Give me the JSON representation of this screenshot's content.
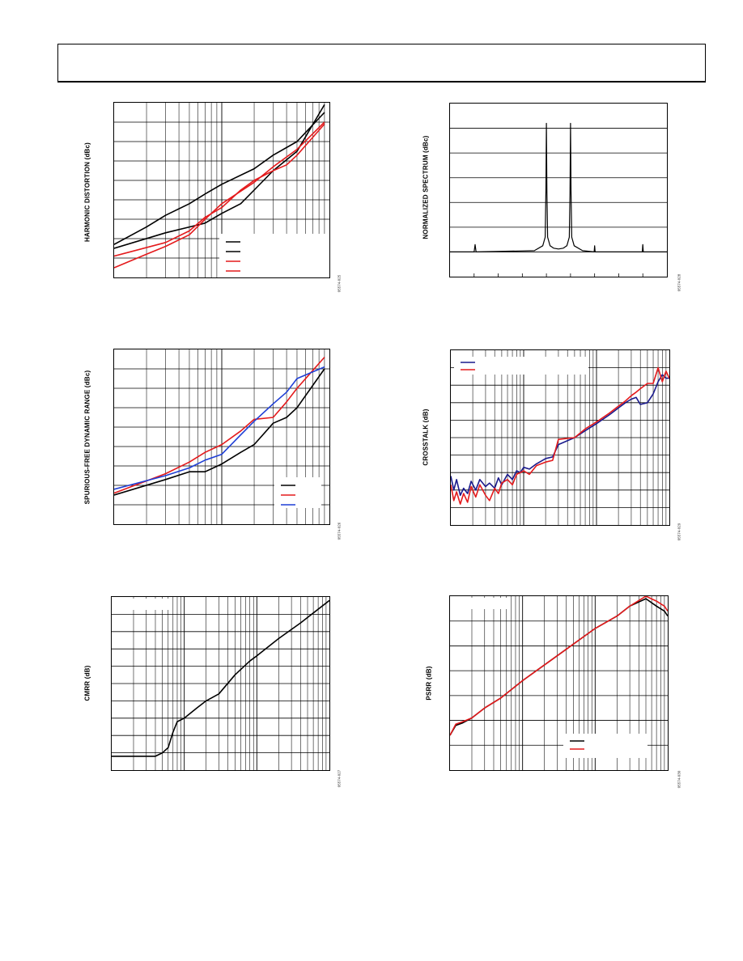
{
  "page": {
    "header": ""
  },
  "charts": [
    {
      "id": "harmonic",
      "figure_id": "05574-025",
      "chart_data": {
        "type": "line",
        "title": "",
        "xlabel": "",
        "ylabel": "HARMONIC DISTORTION (dBc)",
        "xscale": "log",
        "xlim": [
          1,
          100
        ],
        "ylim": [
          0,
          9
        ],
        "grid": true,
        "legend": "bottom-right",
        "series": [
          {
            "color": "#000000",
            "x": [
              1,
              2,
              3,
              5,
              7,
              10,
              20,
              30,
              50,
              90
            ],
            "y": [
              1.7,
              2.6,
              3.2,
              3.8,
              4.3,
              4.8,
              5.6,
              6.3,
              7.0,
              8.5
            ]
          },
          {
            "color": "#000000",
            "x": [
              1,
              3,
              5,
              7,
              10,
              15,
              20,
              30,
              50,
              90
            ],
            "y": [
              1.5,
              2.3,
              2.6,
              2.8,
              3.3,
              3.8,
              4.5,
              5.5,
              6.5,
              8.9
            ]
          },
          {
            "color": "#e41a1c",
            "x": [
              1,
              3,
              5,
              7,
              10,
              15,
              20,
              30,
              40,
              50,
              90
            ],
            "y": [
              1.1,
              1.8,
              2.4,
              3.1,
              3.6,
              4.5,
              5.0,
              5.5,
              5.8,
              6.3,
              7.9
            ]
          },
          {
            "color": "#e41a1c",
            "x": [
              1,
              2,
              3,
              5,
              7,
              10,
              20,
              30,
              50,
              90
            ],
            "y": [
              0.5,
              1.2,
              1.6,
              2.2,
              3.0,
              3.8,
              4.9,
              5.7,
              6.6,
              8.0
            ]
          }
        ]
      }
    },
    {
      "id": "spectrum",
      "figure_id": "05574-028",
      "chart_data": {
        "type": "line",
        "title": "",
        "xlabel": "",
        "ylabel": "NORMALIZED SPECTRUM (dBc)",
        "xlim": [
          0,
          9
        ],
        "ylim": [
          0,
          7
        ],
        "grid": "horizontal",
        "series": [
          {
            "color": "#000000",
            "x": [
              0,
              1.0,
              1.04,
              1.08,
              3.5,
              3.85,
              3.95,
              3.98,
              4.0,
              4.02,
              4.05,
              4.15,
              4.3,
              4.5,
              4.7,
              4.85,
              4.95,
              4.98,
              5.0,
              5.02,
              5.05,
              5.15,
              5.5,
              5.98,
              6.0,
              6.02,
              7.98,
              8.0,
              8.02,
              9.0
            ],
            "y": [
              1.0,
              1.0,
              1.3,
              1.0,
              1.05,
              1.25,
              1.6,
              3.5,
              6.2,
              3.5,
              1.6,
              1.25,
              1.15,
              1.12,
              1.15,
              1.25,
              1.6,
              3.5,
              6.2,
              3.5,
              1.6,
              1.25,
              1.05,
              1.0,
              1.25,
              1.0,
              1.0,
              1.3,
              1.0,
              1.0
            ]
          }
        ]
      }
    },
    {
      "id": "sfdr",
      "figure_id": "05574-026",
      "chart_data": {
        "type": "line",
        "title": "",
        "xlabel": "",
        "ylabel": "SPURIOUS-FREE DYNAMIC RANGE (dBc)",
        "xscale": "log",
        "xlim": [
          1,
          100
        ],
        "ylim": [
          0,
          9
        ],
        "grid": true,
        "legend": "bottom-right",
        "series": [
          {
            "color": "#000000",
            "x": [
              1,
              3,
              5,
              7,
              10,
              15,
              20,
              30,
              40,
              50,
              90
            ],
            "y": [
              1.5,
              2.3,
              2.7,
              2.7,
              3.1,
              3.7,
              4.1,
              5.2,
              5.5,
              6.0,
              8.0
            ]
          },
          {
            "color": "#e41a1c",
            "x": [
              1,
              3,
              5,
              7,
              10,
              15,
              20,
              30,
              40,
              50,
              90
            ],
            "y": [
              1.6,
              2.6,
              3.2,
              3.7,
              4.1,
              4.8,
              5.4,
              5.5,
              6.3,
              7.0,
              8.6
            ]
          },
          {
            "color": "#1f3fd6",
            "x": [
              1,
              3,
              5,
              7,
              10,
              15,
              20,
              30,
              40,
              50,
              90
            ],
            "y": [
              1.8,
              2.5,
              2.9,
              3.3,
              3.6,
              4.6,
              5.3,
              6.2,
              6.8,
              7.5,
              8.1
            ]
          }
        ]
      }
    },
    {
      "id": "crosstalk",
      "figure_id": "05574-029",
      "chart_data": {
        "type": "line",
        "title": "",
        "xlabel": "",
        "ylabel": "CROSSTALK (dB)",
        "xscale": "log",
        "xlim": [
          1,
          1000
        ],
        "ylim": [
          0,
          10
        ],
        "grid": true,
        "legend": "top-left",
        "series": [
          {
            "color": "#1a1a8c",
            "x": [
              1,
              1.1,
              1.2,
              1.35,
              1.5,
              1.7,
              1.9,
              2.2,
              2.5,
              3,
              3.4,
              4,
              4.5,
              5,
              6,
              7,
              8,
              9,
              10,
              12,
              15,
              20,
              25,
              30,
              50,
              70,
              100,
              150,
              200,
              250,
              300,
              350,
              400,
              500,
              600,
              700,
              800,
              900,
              1000
            ],
            "y": [
              2.8,
              2.0,
              2.6,
              1.7,
              2.1,
              1.8,
              2.5,
              2.0,
              2.6,
              2.2,
              2.4,
              2.1,
              2.7,
              2.3,
              2.9,
              2.6,
              3.1,
              3.0,
              3.3,
              3.2,
              3.5,
              3.8,
              3.9,
              4.6,
              5.0,
              5.4,
              5.8,
              6.3,
              6.7,
              7.0,
              7.2,
              7.3,
              6.9,
              7.0,
              7.5,
              8.2,
              8.6,
              8.4,
              8.4
            ]
          },
          {
            "color": "#e41a1c",
            "x": [
              1,
              1.1,
              1.2,
              1.35,
              1.5,
              1.7,
              1.9,
              2.2,
              2.5,
              3,
              3.4,
              4,
              4.5,
              5,
              6,
              7,
              8,
              9,
              10,
              12,
              15,
              20,
              25,
              30,
              50,
              70,
              100,
              150,
              200,
              250,
              300,
              350,
              400,
              500,
              600,
              700,
              800,
              900,
              1000
            ],
            "y": [
              2.3,
              1.4,
              1.9,
              1.2,
              1.8,
              1.3,
              2.2,
              1.6,
              2.3,
              1.7,
              1.4,
              2.1,
              1.8,
              2.4,
              2.6,
              2.3,
              2.9,
              3.0,
              3.1,
              2.9,
              3.4,
              3.6,
              3.7,
              4.9,
              5.0,
              5.5,
              5.9,
              6.4,
              6.8,
              7.1,
              7.4,
              7.6,
              7.8,
              8.1,
              8.1,
              9.0,
              8.2,
              8.8,
              8.4
            ]
          }
        ]
      }
    },
    {
      "id": "cmrr",
      "figure_id": "05574-027",
      "chart_data": {
        "type": "line",
        "title": "",
        "xlabel": "",
        "ylabel": "CMRR (dB)",
        "xscale": "log",
        "xlim": [
          1,
          1000
        ],
        "ylim": [
          0,
          10
        ],
        "grid": true,
        "series": [
          {
            "color": "#000000",
            "x": [
              1,
              2,
              4,
              5,
              6,
              7,
              8,
              10,
              15,
              20,
              30,
              50,
              80,
              100,
              200,
              400,
              1000
            ],
            "y": [
              0.8,
              0.8,
              0.8,
              1.0,
              1.3,
              2.2,
              2.8,
              3.0,
              3.6,
              4.0,
              4.4,
              5.5,
              6.3,
              6.6,
              7.6,
              8.5,
              9.8
            ]
          }
        ]
      }
    },
    {
      "id": "psrr",
      "figure_id": "05574-030",
      "chart_data": {
        "type": "line",
        "title": "",
        "xlabel": "",
        "ylabel": "PSRR (dB)",
        "xscale": "log",
        "xlim": [
          1,
          1000
        ],
        "ylim": [
          0,
          7
        ],
        "grid": true,
        "legend": "bottom-right",
        "series": [
          {
            "color": "#000000",
            "x": [
              1,
              1.2,
              1.5,
              2,
              3,
              5,
              10,
              30,
              100,
              200,
              300,
              500,
              700,
              900,
              1000
            ],
            "y": [
              1.4,
              1.8,
              1.9,
              2.1,
              2.5,
              2.9,
              3.6,
              4.6,
              5.7,
              6.2,
              6.6,
              6.9,
              6.6,
              6.4,
              6.2
            ]
          },
          {
            "color": "#e41a1c",
            "x": [
              1,
              1.2,
              1.5,
              2,
              3,
              5,
              10,
              30,
              100,
              200,
              300,
              500,
              700,
              900,
              1000
            ],
            "y": [
              1.4,
              1.85,
              1.95,
              2.1,
              2.5,
              2.9,
              3.6,
              4.6,
              5.7,
              6.2,
              6.6,
              7.0,
              6.8,
              6.6,
              6.4
            ]
          }
        ]
      }
    }
  ]
}
